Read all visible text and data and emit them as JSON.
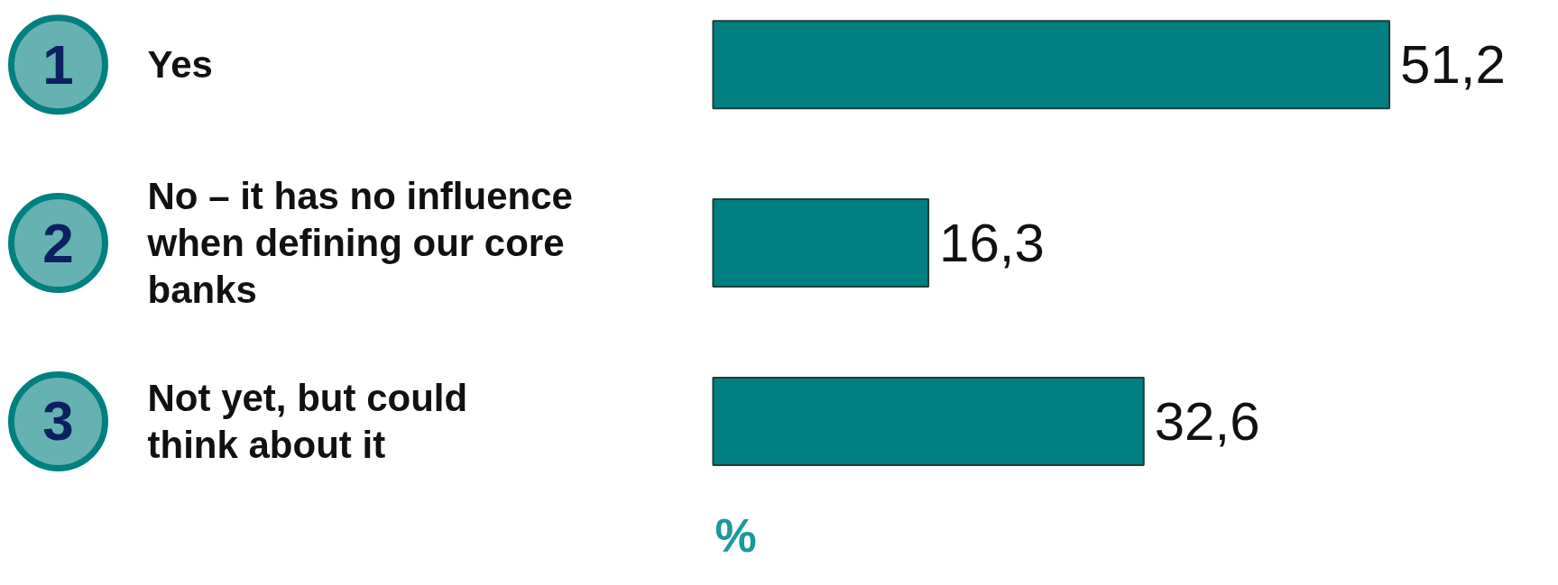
{
  "chart_data": {
    "type": "bar",
    "orientation": "horizontal",
    "categories": [
      "Yes",
      "No – it has no influence\nwhen defining our core\nbanks",
      "Not yet, but could\nthink about it"
    ],
    "values": [
      51.2,
      16.3,
      32.6
    ],
    "value_labels": [
      "51,2",
      "16,3",
      "32,6"
    ],
    "color": "#008080",
    "xlim": [
      0,
      64
    ],
    "xlabel": "%",
    "annotations": [
      "1",
      "2",
      "3"
    ]
  }
}
